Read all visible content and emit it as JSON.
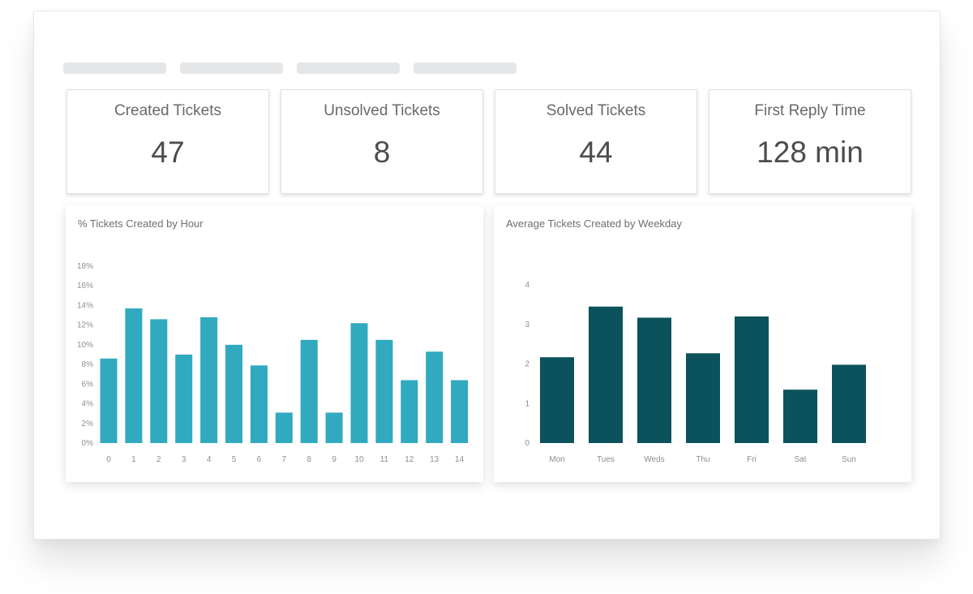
{
  "stats": [
    {
      "label": "Created Tickets",
      "value": "47"
    },
    {
      "label": "Unsolved Tickets",
      "value": "8"
    },
    {
      "label": "Solved Tickets",
      "value": "44"
    },
    {
      "label": "First Reply Time",
      "value": "128 min"
    }
  ],
  "chart_data": [
    {
      "type": "bar",
      "title": "% Tickets Created by Hour",
      "color": "#31a9bf",
      "categories": [
        "0",
        "1",
        "2",
        "3",
        "4",
        "5",
        "6",
        "7",
        "8",
        "9",
        "10",
        "11",
        "12",
        "13",
        "14"
      ],
      "values": [
        8.6,
        13.7,
        12.6,
        9.0,
        12.8,
        10.0,
        7.9,
        3.1,
        10.5,
        3.1,
        12.2,
        10.5,
        6.4,
        9.3,
        6.4
      ],
      "ylim": [
        0,
        18
      ],
      "yticks": [
        "0%",
        "2%",
        "4%",
        "6%",
        "8%",
        "10%",
        "12%",
        "14%",
        "16%",
        "18%"
      ],
      "xlabel": "",
      "ylabel": ""
    },
    {
      "type": "bar",
      "title": "Average Tickets Created by Weekday",
      "color": "#0b525c",
      "categories": [
        "Mon",
        "Tues",
        "Weds",
        "Thu",
        "Fri",
        "Sat",
        "Sun"
      ],
      "values": [
        2.17,
        3.45,
        3.17,
        2.27,
        3.2,
        1.35,
        1.98
      ],
      "ylim": [
        0,
        4
      ],
      "yticks": [
        "0",
        "1",
        "2",
        "3",
        "4"
      ],
      "xlabel": "",
      "ylabel": ""
    }
  ]
}
